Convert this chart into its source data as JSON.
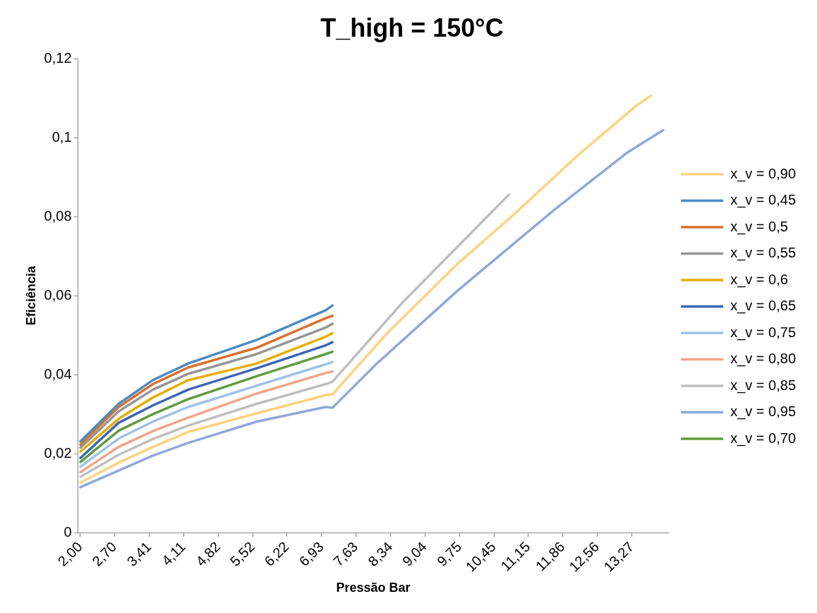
{
  "chart_data": {
    "type": "line",
    "title": "T_high = 150°C",
    "xlabel": "Pressão Bar",
    "ylabel": "Eficiência",
    "xlim": [
      1.95,
      14.02
    ],
    "xticks": [
      {
        "value": 2.0,
        "label": "2,00"
      },
      {
        "value": 2.7,
        "label": "2,70"
      },
      {
        "value": 3.41,
        "label": "3,41"
      },
      {
        "value": 4.11,
        "label": "4,11"
      },
      {
        "value": 4.82,
        "label": "4,82"
      },
      {
        "value": 5.52,
        "label": "5,52"
      },
      {
        "value": 6.22,
        "label": "6,22"
      },
      {
        "value": 6.93,
        "label": "6,93"
      },
      {
        "value": 7.63,
        "label": "7,63"
      },
      {
        "value": 8.34,
        "label": "8,34"
      },
      {
        "value": 9.04,
        "label": "9,04"
      },
      {
        "value": 9.75,
        "label": "9,75"
      },
      {
        "value": 10.45,
        "label": "10,45"
      },
      {
        "value": 11.15,
        "label": "11,15"
      },
      {
        "value": 11.86,
        "label": "11,86"
      },
      {
        "value": 12.56,
        "label": "12,56"
      },
      {
        "value": 13.27,
        "label": "13,27"
      }
    ],
    "ylim": [
      0,
      0.12
    ],
    "yticks": [
      0,
      {
        "value": 0.02,
        "label": "0,02"
      },
      {
        "value": 0.04,
        "label": "0,04"
      },
      {
        "value": 0.06,
        "label": "0,06"
      },
      {
        "value": 0.08,
        "label": "0,08"
      },
      {
        "value": 0.1,
        "label": "0,1"
      },
      {
        "value": 0.12,
        "label": "0,12"
      }
    ],
    "grid": false,
    "legend": "right",
    "marker": "none",
    "line_style": "solid",
    "series": [
      {
        "name": "x_v = 0,90",
        "color": "#ffd27f",
        "x": [
          2.0,
          2.78,
          3.48,
          4.2,
          5.6,
          7.01,
          7.15,
          8.27,
          9.71,
          10.79,
          12.18,
          13.38,
          13.66
        ],
        "values": [
          0.0127,
          0.0177,
          0.0217,
          0.0255,
          0.0302,
          0.0348,
          0.035,
          0.0505,
          0.0681,
          0.0798,
          0.0957,
          0.1083,
          0.1106
        ]
      },
      {
        "name": "x_v = 0,45",
        "color": "#4a8bc4",
        "x": [
          2.0,
          2.78,
          3.48,
          4.2,
          5.6,
          7.01,
          7.15
        ],
        "values": [
          0.0231,
          0.0326,
          0.0386,
          0.0428,
          0.0488,
          0.0563,
          0.0575
        ]
      },
      {
        "name": "x_v = 0,5",
        "color": "#d8702d",
        "x": [
          2.0,
          2.78,
          3.48,
          4.2,
          5.6,
          7.01,
          7.15
        ],
        "values": [
          0.0223,
          0.0318,
          0.0376,
          0.0418,
          0.0468,
          0.0543,
          0.0549
        ]
      },
      {
        "name": "x_v = 0,55",
        "color": "#959595",
        "x": [
          2.0,
          2.78,
          3.48,
          4.2,
          5.6,
          7.01,
          7.15
        ],
        "values": [
          0.0215,
          0.0307,
          0.0362,
          0.0402,
          0.0452,
          0.0519,
          0.0529
        ]
      },
      {
        "name": "x_v = 0,6",
        "color": "#e5ae00",
        "x": [
          2.0,
          2.78,
          3.48,
          4.2,
          5.6,
          7.01,
          7.15
        ],
        "values": [
          0.0205,
          0.0288,
          0.0342,
          0.0386,
          0.0428,
          0.0496,
          0.0505
        ]
      },
      {
        "name": "x_v = 0,65",
        "color": "#3d66b0",
        "x": [
          2.0,
          2.78,
          3.48,
          4.2,
          5.6,
          7.01,
          7.15
        ],
        "values": [
          0.0189,
          0.0278,
          0.0322,
          0.0362,
          0.0416,
          0.0474,
          0.0482
        ]
      },
      {
        "name": "x_v = 0,75",
        "color": "#9dc3e6",
        "x": [
          2.0,
          2.78,
          3.48,
          4.2,
          5.6,
          7.01,
          7.15
        ],
        "values": [
          0.0167,
          0.0238,
          0.0281,
          0.0318,
          0.0372,
          0.0426,
          0.0432
        ]
      },
      {
        "name": "x_v = 0,80",
        "color": "#f1a587",
        "x": [
          2.0,
          2.78,
          3.48,
          4.2,
          5.6,
          7.01,
          7.15
        ],
        "values": [
          0.0153,
          0.0217,
          0.0257,
          0.0291,
          0.0352,
          0.0404,
          0.0408
        ]
      },
      {
        "name": "x_v = 0,85",
        "color": "#bfbfbf",
        "x": [
          2.0,
          2.78,
          3.48,
          4.2,
          5.6,
          7.01,
          7.15,
          8.57,
          9.77,
          10.76
        ],
        "values": [
          0.0141,
          0.0197,
          0.0237,
          0.0271,
          0.0326,
          0.0376,
          0.0382,
          0.0581,
          0.0732,
          0.0856
        ]
      },
      {
        "name": "x_v = 0,95",
        "color": "#8fa8d8",
        "x": [
          2.0,
          2.78,
          3.48,
          4.2,
          5.6,
          7.01,
          7.15,
          8.04,
          9.71,
          11.69,
          13.16,
          13.44,
          13.91
        ],
        "values": [
          0.0115,
          0.0157,
          0.0195,
          0.0227,
          0.0281,
          0.0318,
          0.0316,
          0.0426,
          0.0613,
          0.0818,
          0.0961,
          0.0983,
          0.1019
        ]
      },
      {
        "name": "x_v = 0,70",
        "color": "#5f9b3e",
        "x": [
          2.0,
          2.78,
          3.48,
          4.2,
          5.6,
          7.01,
          7.15
        ],
        "values": [
          0.0179,
          0.0258,
          0.03,
          0.0338,
          0.0396,
          0.0452,
          0.0458
        ]
      }
    ]
  }
}
